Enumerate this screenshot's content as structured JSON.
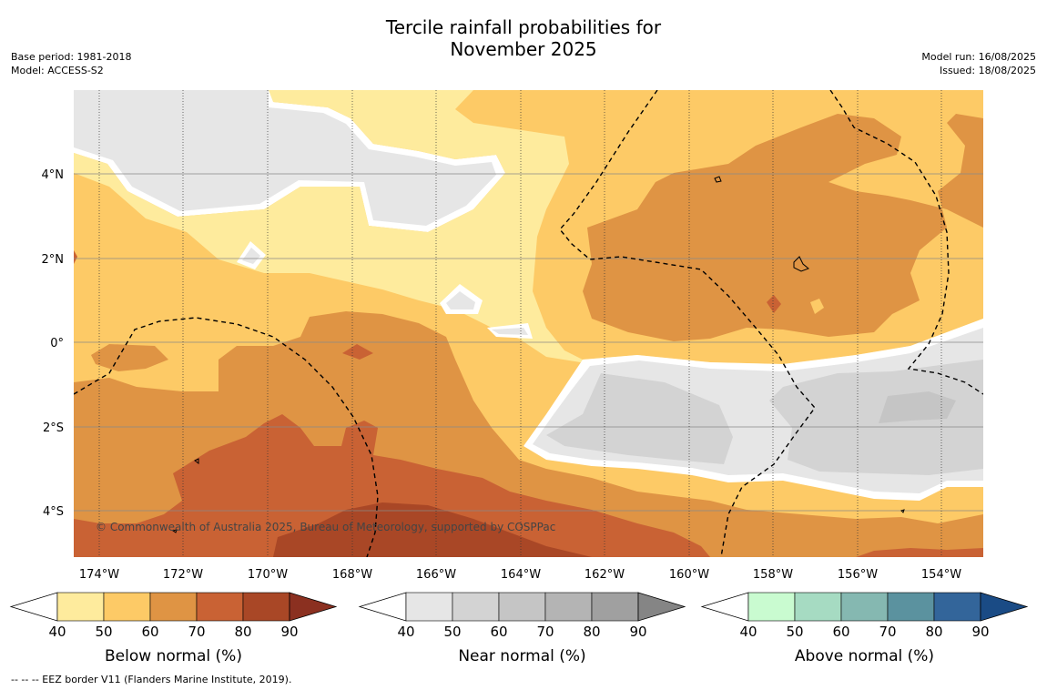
{
  "title": {
    "line1": "Tercile rainfall probabilities for",
    "line2": "November 2025"
  },
  "meta_left": {
    "line1": "Base period: 1981-2018",
    "line2": "Model: ACCESS-S2"
  },
  "meta_right": {
    "line1": "Model run: 16/08/2025",
    "line2": "Issued: 18/08/2025"
  },
  "copyright": "© Commonwealth of Australia 2025, Bureau of Meteorology, supported by COSPPac",
  "lat_labels": [
    "4°N",
    "2°N",
    "0°",
    "2°S",
    "4°S"
  ],
  "lon_labels": [
    "174°W",
    "172°W",
    "170°W",
    "168°W",
    "166°W",
    "164°W",
    "162°W",
    "160°W",
    "158°W",
    "156°W",
    "154°W"
  ],
  "colorbars": [
    {
      "title": "Below normal (%)",
      "ticks": [
        "40",
        "50",
        "60",
        "70",
        "80",
        "90"
      ],
      "colors": [
        "#ffffff",
        "#feeb9d",
        "#fdca66",
        "#df9444",
        "#c96234",
        "#a94726",
        "#8b3020"
      ]
    },
    {
      "title": "Near normal (%)",
      "ticks": [
        "40",
        "50",
        "60",
        "70",
        "80",
        "90"
      ],
      "colors": [
        "#ffffff",
        "#e6e6e6",
        "#d3d3d3",
        "#c5c5c5",
        "#b4b4b4",
        "#a0a0a0",
        "#858585"
      ]
    },
    {
      "title": "Above normal (%)",
      "ticks": [
        "40",
        "50",
        "60",
        "70",
        "80",
        "90"
      ],
      "colors": [
        "#ffffff",
        "#c9fbd0",
        "#a6dbc2",
        "#85b8b1",
        "#5b929f",
        "#33659a",
        "#1a4b85"
      ]
    }
  ],
  "footnote": "--  --  -- EEZ border V11 (Flanders Marine Institute, 2019)."
}
